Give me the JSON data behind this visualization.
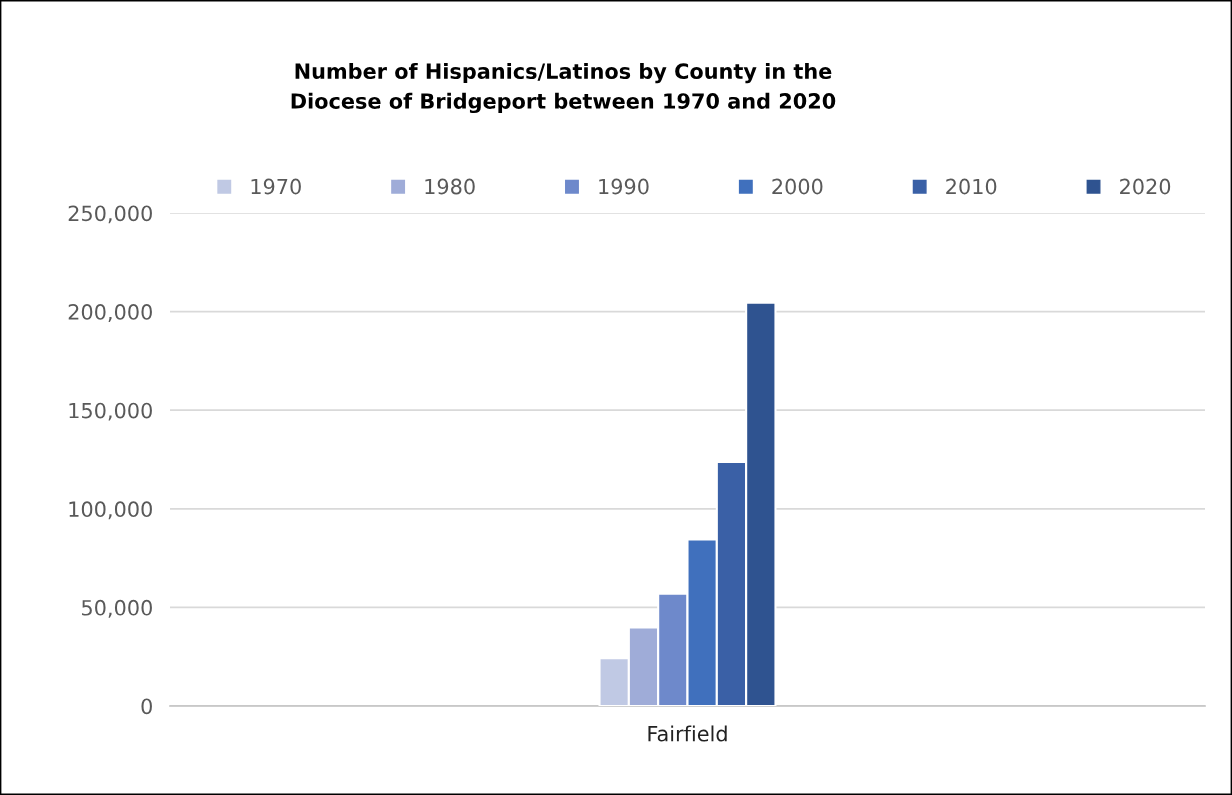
{
  "chart_data": {
    "type": "bar",
    "title": "Number of Hispanics/Latinos by County in the\nDiocese of Bridgeport between 1970 and 2020",
    "categories": [
      null,
      null,
      "Fairfield",
      null,
      null
    ],
    "series": [
      {
        "name": "1970",
        "color": "#c0c9e4",
        "values": [
          null,
          null,
          24200,
          null,
          null
        ]
      },
      {
        "name": "1980",
        "color": "#9facd8",
        "values": [
          null,
          null,
          39800,
          null,
          null
        ]
      },
      {
        "name": "1990",
        "color": "#6e89cb",
        "values": [
          null,
          null,
          57000,
          null,
          null
        ]
      },
      {
        "name": "2000",
        "color": "#4070bd",
        "values": [
          null,
          null,
          84400,
          null,
          null
        ]
      },
      {
        "name": "2010",
        "color": "#3a60a6",
        "values": [
          null,
          null,
          123800,
          null,
          null
        ]
      },
      {
        "name": "2020",
        "color": "#2f5390",
        "values": [
          null,
          null,
          204500,
          null,
          null
        ]
      }
    ],
    "ylim": [
      0,
      250000
    ],
    "yticks": [
      {
        "value": 0,
        "label": "0"
      },
      {
        "value": 50000,
        "label": "50,000"
      },
      {
        "value": 100000,
        "label": "100,000"
      },
      {
        "value": 150000,
        "label": "150,000"
      },
      {
        "value": 200000,
        "label": "200,000"
      },
      {
        "value": 250000,
        "label": "250,000"
      }
    ],
    "grid": "y",
    "legend": "top"
  }
}
